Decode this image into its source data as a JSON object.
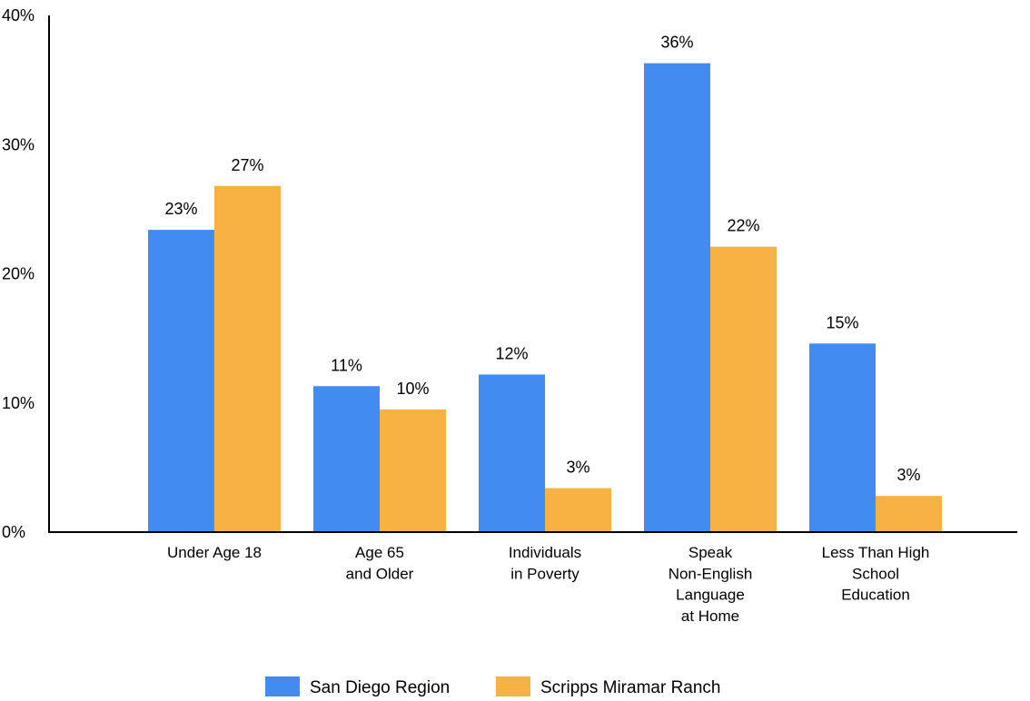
{
  "chart_data": {
    "type": "bar",
    "categories": [
      [
        "Under Age 18"
      ],
      [
        "Age 65",
        "and Older"
      ],
      [
        "Individuals",
        "in Poverty"
      ],
      [
        "Speak",
        "Non-English",
        "Language",
        "at Home"
      ],
      [
        "Less Than High",
        "School",
        "Education"
      ]
    ],
    "series": [
      {
        "name": "San Diego Region",
        "color": "#428BF0",
        "values": [
          23.4,
          11.3,
          12.2,
          36.3,
          14.6
        ],
        "labels": [
          "23%",
          "11%",
          "12%",
          "36%",
          "15%"
        ]
      },
      {
        "name": "Scripps Miramar Ranch",
        "color": "#F8B243",
        "values": [
          26.8,
          9.5,
          3.4,
          22.1,
          2.8
        ],
        "labels": [
          "27%",
          "10%",
          "3%",
          "22%",
          "3%"
        ]
      }
    ],
    "yticks": [
      0,
      10,
      20,
      30,
      40
    ],
    "ytick_labels": [
      "0%",
      "10%",
      "20%",
      "30%",
      "40%"
    ],
    "ylim": [
      0,
      40
    ],
    "grid": false,
    "legend_position": "bottom"
  }
}
